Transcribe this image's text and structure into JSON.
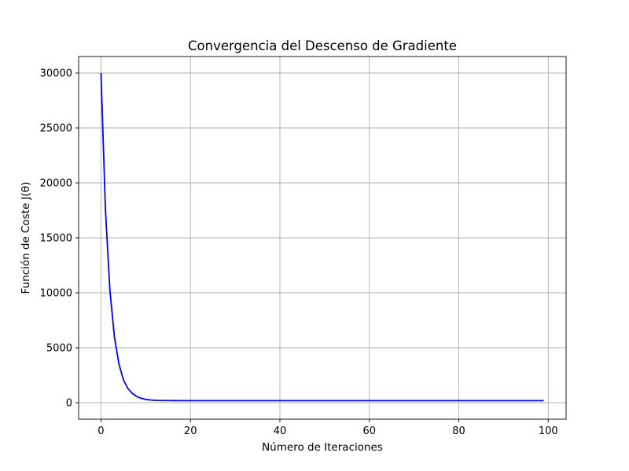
{
  "chart_data": {
    "type": "line",
    "title": "Convergencia del Descenso de Gradiente",
    "xlabel": "Número de Iteraciones",
    "ylabel": "Función de Coste J(θ)",
    "xlim": [
      -5,
      104
    ],
    "ylim": [
      -1500,
      31500
    ],
    "x_ticks": [
      0,
      20,
      40,
      60,
      80,
      100
    ],
    "y_ticks": [
      0,
      5000,
      10000,
      15000,
      20000,
      25000,
      30000
    ],
    "grid": true,
    "series": [
      {
        "color": "#0000ff",
        "x": [
          0,
          1,
          2,
          3,
          4,
          5,
          6,
          7,
          8,
          9,
          10,
          11,
          12,
          13,
          14,
          15,
          16,
          17,
          18,
          19,
          20,
          25,
          30,
          40,
          50,
          60,
          70,
          80,
          90,
          99
        ],
        "y": [
          30000,
          17500,
          10200,
          6000,
          3550,
          2100,
          1300,
          850,
          560,
          400,
          300,
          250,
          220,
          205,
          198,
          194,
          192,
          191,
          190,
          190,
          190,
          190,
          190,
          190,
          190,
          190,
          190,
          190,
          190,
          190
        ]
      }
    ]
  }
}
